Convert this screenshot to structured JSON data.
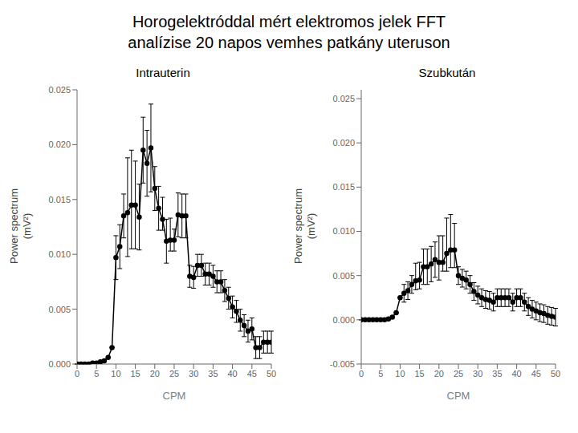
{
  "title": "Horogelektróddal mért elektromos jelek FFT\nanalízise 20 napos vemhes patkány uteruson",
  "chart_data": [
    {
      "type": "line",
      "title": "Intrauterin",
      "xlabel": "CPM",
      "ylabel": "Power spectrum\n(mV²)",
      "xlim": [
        0,
        50
      ],
      "xticks": [
        0,
        5,
        10,
        15,
        20,
        25,
        30,
        35,
        40,
        45,
        50
      ],
      "ylim": [
        0,
        0.025
      ],
      "yticks": [
        {
          "value": 0,
          "label": "0.000"
        },
        0.005,
        {
          "value": 0.01,
          "label": "0.010"
        },
        0.015,
        {
          "value": 0.02,
          "label": "0.020"
        },
        0.025
      ],
      "grid": false,
      "color": "#000000",
      "marker": "circle",
      "x": [
        0,
        1,
        2,
        3,
        4,
        5,
        6,
        7,
        8,
        9,
        10,
        11,
        12,
        13,
        14,
        15,
        16,
        17,
        18,
        19,
        20,
        21,
        22,
        23,
        24,
        25,
        26,
        27,
        28,
        29,
        30,
        31,
        32,
        33,
        34,
        35,
        36,
        37,
        38,
        39,
        40,
        41,
        42,
        43,
        44,
        45,
        46,
        47,
        48,
        49,
        50
      ],
      "values": [
        0.0,
        0.0,
        0.0,
        0.0,
        0.0001,
        0.0001,
        0.0002,
        0.0003,
        0.0006,
        0.0015,
        0.0097,
        0.0107,
        0.0135,
        0.0138,
        0.0145,
        0.0145,
        0.0134,
        0.0195,
        0.0183,
        0.0197,
        0.016,
        0.0142,
        0.0132,
        0.0112,
        0.0113,
        0.0113,
        0.0136,
        0.0135,
        0.0135,
        0.008,
        0.0079,
        0.009,
        0.009,
        0.0082,
        0.0082,
        0.008,
        0.0075,
        0.0075,
        0.0067,
        0.006,
        0.0052,
        0.0048,
        0.004,
        0.0035,
        0.003,
        0.0032,
        0.0015,
        0.0015,
        0.002,
        0.002,
        0.002
      ],
      "yerr_lo": [
        0.0,
        0.0,
        0.0,
        0.0,
        0.0,
        0.0,
        0.0,
        0.0,
        0.0,
        0.0,
        0.002,
        0.002,
        0.002,
        0.004,
        0.004,
        0.004,
        0.003,
        0.003,
        0.003,
        0.004,
        0.002,
        0.002,
        0.001,
        0.002,
        0.001,
        0.001,
        0.002,
        0.002,
        0.002,
        0.001,
        0.001,
        0.001,
        0.001,
        0.001,
        0.001,
        0.001,
        0.001,
        0.001,
        0.001,
        0.001,
        0.001,
        0.001,
        0.001,
        0.001,
        0.001,
        0.001,
        0.001,
        0.001,
        0.001,
        0.001,
        0.001
      ],
      "yerr_hi": [
        0.0,
        0.0,
        0.0,
        0.0,
        0.0,
        0.0,
        0.0,
        0.0,
        0.0,
        0.0,
        0.002,
        0.002,
        0.002,
        0.005,
        0.005,
        0.004,
        0.003,
        0.003,
        0.003,
        0.004,
        0.002,
        0.002,
        0.002,
        0.002,
        0.002,
        0.001,
        0.002,
        0.002,
        0.002,
        0.001,
        0.001,
        0.001,
        0.001,
        0.001,
        0.001,
        0.001,
        0.001,
        0.001,
        0.001,
        0.001,
        0.001,
        0.001,
        0.001,
        0.001,
        0.001,
        0.001,
        0.001,
        0.001,
        0.001,
        0.001,
        0.001
      ]
    },
    {
      "type": "line",
      "title": "Szubkután",
      "xlabel": "CPM",
      "ylabel": "Power spectrum\n(mV²)",
      "xlim": [
        0,
        50
      ],
      "xticks": [
        0,
        5,
        10,
        15,
        20,
        25,
        30,
        35,
        40,
        45,
        50
      ],
      "ylim": [
        -0.005,
        0.026
      ],
      "yticks": [
        -0.005,
        {
          "value": 0,
          "label": "0.000"
        },
        0.005,
        {
          "value": 0.01,
          "label": "0.010"
        },
        0.015,
        {
          "value": 0.02,
          "label": "0.020"
        },
        0.025
      ],
      "grid": false,
      "color": "#000000",
      "marker": "circle",
      "x": [
        0,
        1,
        2,
        3,
        4,
        5,
        6,
        7,
        8,
        9,
        10,
        11,
        12,
        13,
        14,
        15,
        16,
        17,
        18,
        19,
        20,
        21,
        22,
        23,
        24,
        25,
        26,
        27,
        28,
        29,
        30,
        31,
        32,
        33,
        34,
        35,
        36,
        37,
        38,
        39,
        40,
        41,
        42,
        43,
        44,
        45,
        46,
        47,
        48,
        49,
        50
      ],
      "values": [
        0.0,
        0.0,
        0.0,
        0.0,
        0.0,
        0.0,
        0.0,
        0.0001,
        0.0003,
        0.0008,
        0.0025,
        0.003,
        0.0033,
        0.004,
        0.0044,
        0.0045,
        0.006,
        0.006,
        0.0063,
        0.0068,
        0.0065,
        0.0065,
        0.0075,
        0.0079,
        0.0079,
        0.005,
        0.0047,
        0.0045,
        0.004,
        0.0032,
        0.0028,
        0.0025,
        0.0023,
        0.0022,
        0.002,
        0.0025,
        0.0025,
        0.0025,
        0.0025,
        0.002,
        0.0025,
        0.0025,
        0.002,
        0.0015,
        0.0012,
        0.001,
        0.0008,
        0.0007,
        0.0005,
        0.0004,
        0.0003
      ],
      "yerr_lo": [
        0.0,
        0.0,
        0.0,
        0.0,
        0.0,
        0.0,
        0.0,
        0.0,
        0.0,
        0.0,
        0.0,
        0.001,
        0.001,
        0.001,
        0.001,
        0.001,
        0.002,
        0.002,
        0.002,
        0.002,
        0.002,
        0.001,
        0.002,
        0.002,
        0.002,
        0.001,
        0.001,
        0.001,
        0.001,
        0.001,
        0.001,
        0.001,
        0.001,
        0.001,
        0.001,
        0.001,
        0.001,
        0.001,
        0.001,
        0.001,
        0.001,
        0.001,
        0.001,
        0.001,
        0.001,
        0.001,
        0.001,
        0.001,
        0.001,
        0.001,
        0.001
      ],
      "yerr_hi": [
        0.0,
        0.0,
        0.0,
        0.0,
        0.0,
        0.0,
        0.0,
        0.0,
        0.0,
        0.0,
        0.0,
        0.001,
        0.001,
        0.001,
        0.002,
        0.002,
        0.002,
        0.002,
        0.002,
        0.002,
        0.003,
        0.003,
        0.004,
        0.004,
        0.003,
        0.001,
        0.001,
        0.001,
        0.001,
        0.001,
        0.001,
        0.001,
        0.001,
        0.001,
        0.001,
        0.001,
        0.001,
        0.001,
        0.001,
        0.001,
        0.001,
        0.001,
        0.001,
        0.001,
        0.001,
        0.001,
        0.001,
        0.001,
        0.001,
        0.001,
        0.001
      ]
    }
  ]
}
